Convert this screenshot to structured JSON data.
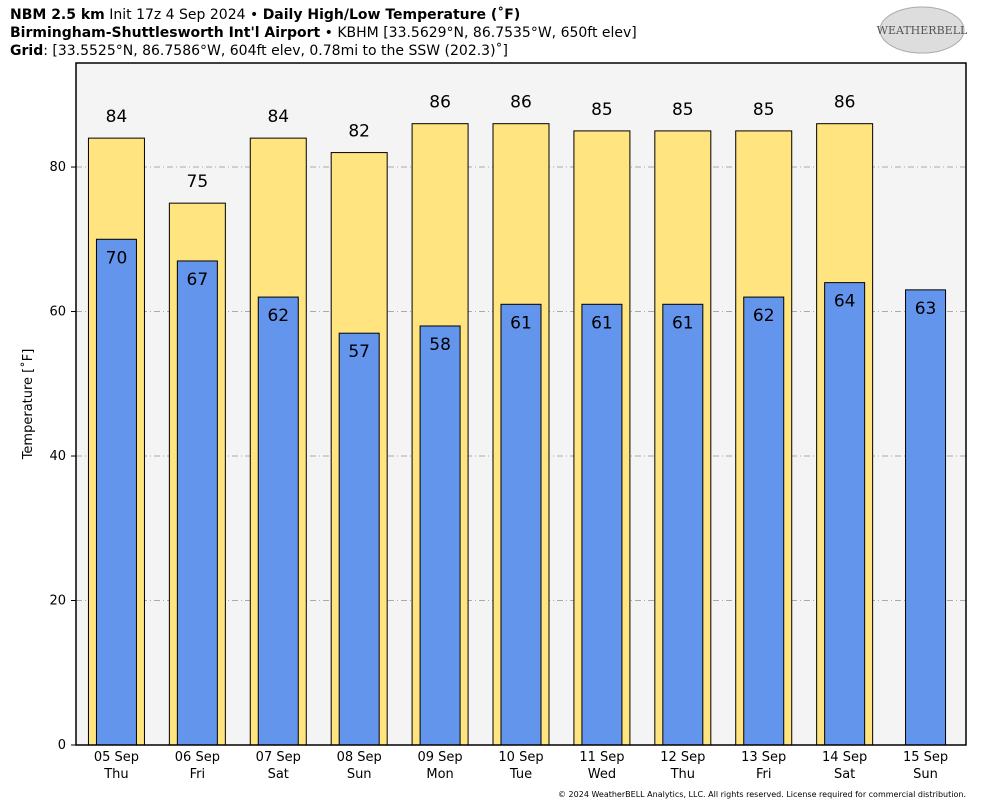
{
  "header": {
    "model": "NBM 2.5 km",
    "init": "Init 17z 4 Sep 2024",
    "separator": "•",
    "product": "Daily High/Low Temperature (˚F)",
    "station": "Birmingham-Shuttlesworth Int'l Airport",
    "station_info": "KBHM [33.5629°N, 86.7535°W, 650ft elev]",
    "grid_label": "Grid",
    "grid_info": ": [33.5525°N, 86.7586°W, 604ft elev, 0.78mi to the SSW (202.3)˚]"
  },
  "logo": "WEATHERBELL",
  "footer": "© 2024 WeatherBELL Analytics, LLC. All rights reserved. License required for commercial distribution.",
  "chart_data": {
    "type": "bar",
    "y_label": "Temperature [˚F]",
    "categories": [
      "05 Sep",
      "06 Sep",
      "07 Sep",
      "08 Sep",
      "09 Sep",
      "10 Sep",
      "11 Sep",
      "12 Sep",
      "13 Sep",
      "14 Sep",
      "15 Sep"
    ],
    "weekdays": [
      "Thu",
      "Fri",
      "Sat",
      "Sun",
      "Mon",
      "Tue",
      "Wed",
      "Thu",
      "Fri",
      "Sat",
      "Sun"
    ],
    "series": [
      {
        "color": "#ffe47f",
        "values": [
          84,
          75,
          84,
          82,
          86,
          86,
          85,
          85,
          85,
          86,
          null
        ]
      },
      {
        "color": "#6495ed",
        "values": [
          70,
          67,
          62,
          57,
          58,
          61,
          61,
          61,
          62,
          64,
          63
        ]
      }
    ],
    "ylim": [
      0,
      94.4
    ],
    "yticks": [
      0,
      20,
      40,
      60,
      80
    ],
    "grid": true
  }
}
